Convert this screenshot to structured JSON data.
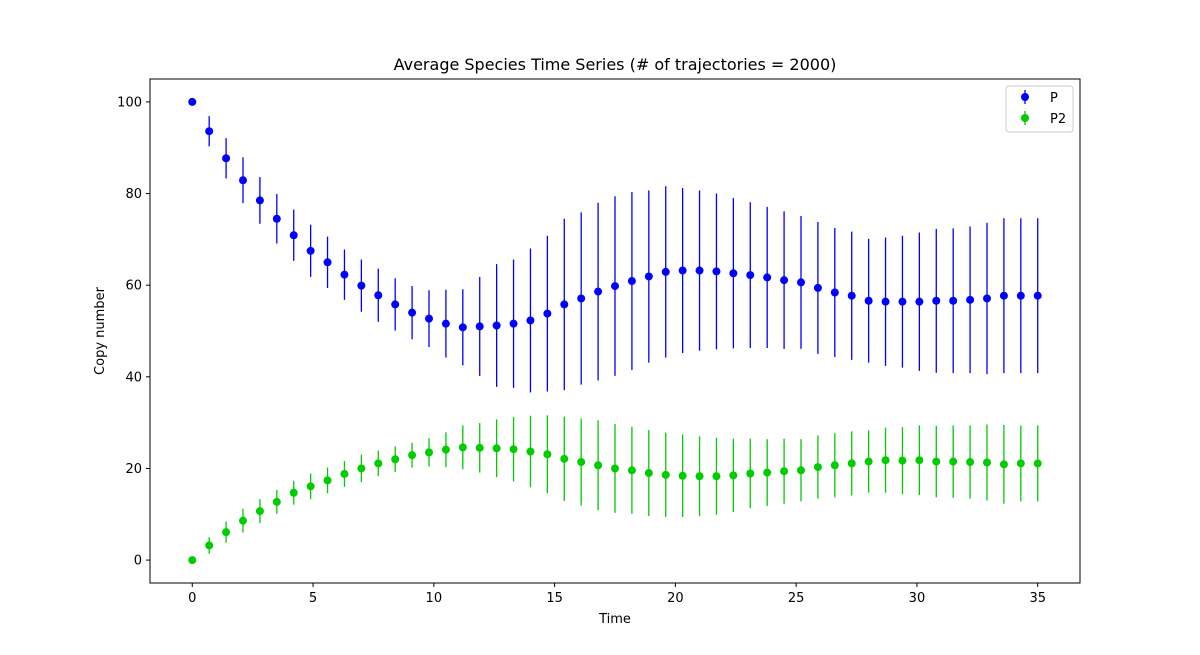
{
  "chart_data": {
    "type": "scatter",
    "title": "Average Species Time Series (# of trajectories = 2000)",
    "xlabel": "Time",
    "ylabel": "Copy number",
    "xlim": [
      -1.75,
      36.75
    ],
    "ylim": [
      -5,
      105
    ],
    "xticks": [
      0,
      5,
      10,
      15,
      20,
      25,
      30,
      35
    ],
    "yticks": [
      0,
      20,
      40,
      60,
      80,
      100
    ],
    "grid": false,
    "legend_position": "top-right",
    "x": [
      0,
      0.7,
      1.4,
      2.1,
      2.8,
      3.5,
      4.2,
      4.9,
      5.6,
      6.3,
      7.0,
      7.7,
      8.4,
      9.1,
      9.8,
      10.5,
      11.2,
      11.9,
      12.6,
      13.3,
      14.0,
      14.7,
      15.4,
      16.1,
      16.8,
      17.5,
      18.2,
      18.9,
      19.6,
      20.3,
      21.0,
      21.7,
      22.4,
      23.1,
      23.8,
      24.5,
      25.2,
      25.9,
      26.6,
      27.3,
      28.0,
      28.7,
      29.4,
      30.1,
      30.8,
      31.5,
      32.2,
      32.9,
      33.6,
      34.3,
      35.0
    ],
    "series": [
      {
        "name": "P",
        "color": "#0000ff",
        "values": [
          100,
          93.6,
          87.7,
          82.9,
          78.5,
          74.5,
          70.9,
          67.5,
          65.0,
          62.3,
          59.9,
          57.8,
          55.8,
          54.0,
          52.7,
          51.6,
          50.8,
          51.0,
          51.2,
          51.6,
          52.3,
          53.8,
          55.8,
          57.1,
          58.6,
          59.8,
          60.9,
          61.9,
          62.9,
          63.2,
          63.2,
          63.0,
          62.6,
          62.2,
          61.7,
          61.1,
          60.6,
          59.4,
          58.4,
          57.7,
          56.6,
          56.4,
          56.4,
          56.4,
          56.6,
          56.6,
          56.8,
          57.1,
          57.7,
          57.7,
          57.7
        ],
        "errors": [
          0.0,
          3.3,
          4.4,
          5.0,
          5.1,
          5.4,
          5.6,
          5.7,
          5.6,
          5.5,
          5.7,
          5.8,
          5.7,
          5.8,
          6.2,
          7.4,
          8.3,
          10.8,
          13.4,
          14.0,
          15.7,
          17.0,
          18.7,
          18.8,
          19.4,
          19.6,
          19.4,
          18.8,
          18.7,
          18.0,
          17.5,
          17.0,
          16.4,
          15.9,
          15.4,
          15.0,
          14.5,
          14.4,
          14.1,
          14.0,
          13.5,
          14.0,
          14.4,
          15.1,
          15.7,
          15.8,
          16.0,
          16.5,
          16.9,
          16.9,
          16.9
        ]
      },
      {
        "name": "P2",
        "color": "#00cc00",
        "values": [
          0,
          3.2,
          6.1,
          8.6,
          10.7,
          12.7,
          14.7,
          16.1,
          17.4,
          18.8,
          20.0,
          21.1,
          22.0,
          22.9,
          23.5,
          24.1,
          24.6,
          24.5,
          24.4,
          24.2,
          23.7,
          23.1,
          22.1,
          21.4,
          20.7,
          20.0,
          19.6,
          19.0,
          18.6,
          18.4,
          18.3,
          18.3,
          18.5,
          18.9,
          19.1,
          19.4,
          19.6,
          20.3,
          20.7,
          21.1,
          21.5,
          21.8,
          21.7,
          21.8,
          21.5,
          21.5,
          21.4,
          21.3,
          20.9,
          21.1,
          21.1
        ],
        "errors": [
          0.0,
          1.8,
          2.3,
          2.6,
          2.6,
          2.6,
          2.6,
          2.8,
          2.8,
          2.8,
          3.0,
          2.8,
          2.8,
          2.7,
          3.1,
          3.8,
          4.8,
          5.4,
          6.3,
          7.0,
          7.8,
          8.5,
          9.2,
          9.5,
          9.8,
          9.7,
          9.5,
          9.4,
          9.2,
          9.0,
          8.7,
          8.4,
          8.0,
          7.6,
          7.3,
          7.1,
          6.8,
          6.9,
          7.0,
          7.0,
          6.8,
          7.1,
          7.3,
          7.6,
          7.8,
          7.9,
          8.0,
          8.3,
          8.6,
          8.3,
          8.3
        ]
      }
    ]
  }
}
